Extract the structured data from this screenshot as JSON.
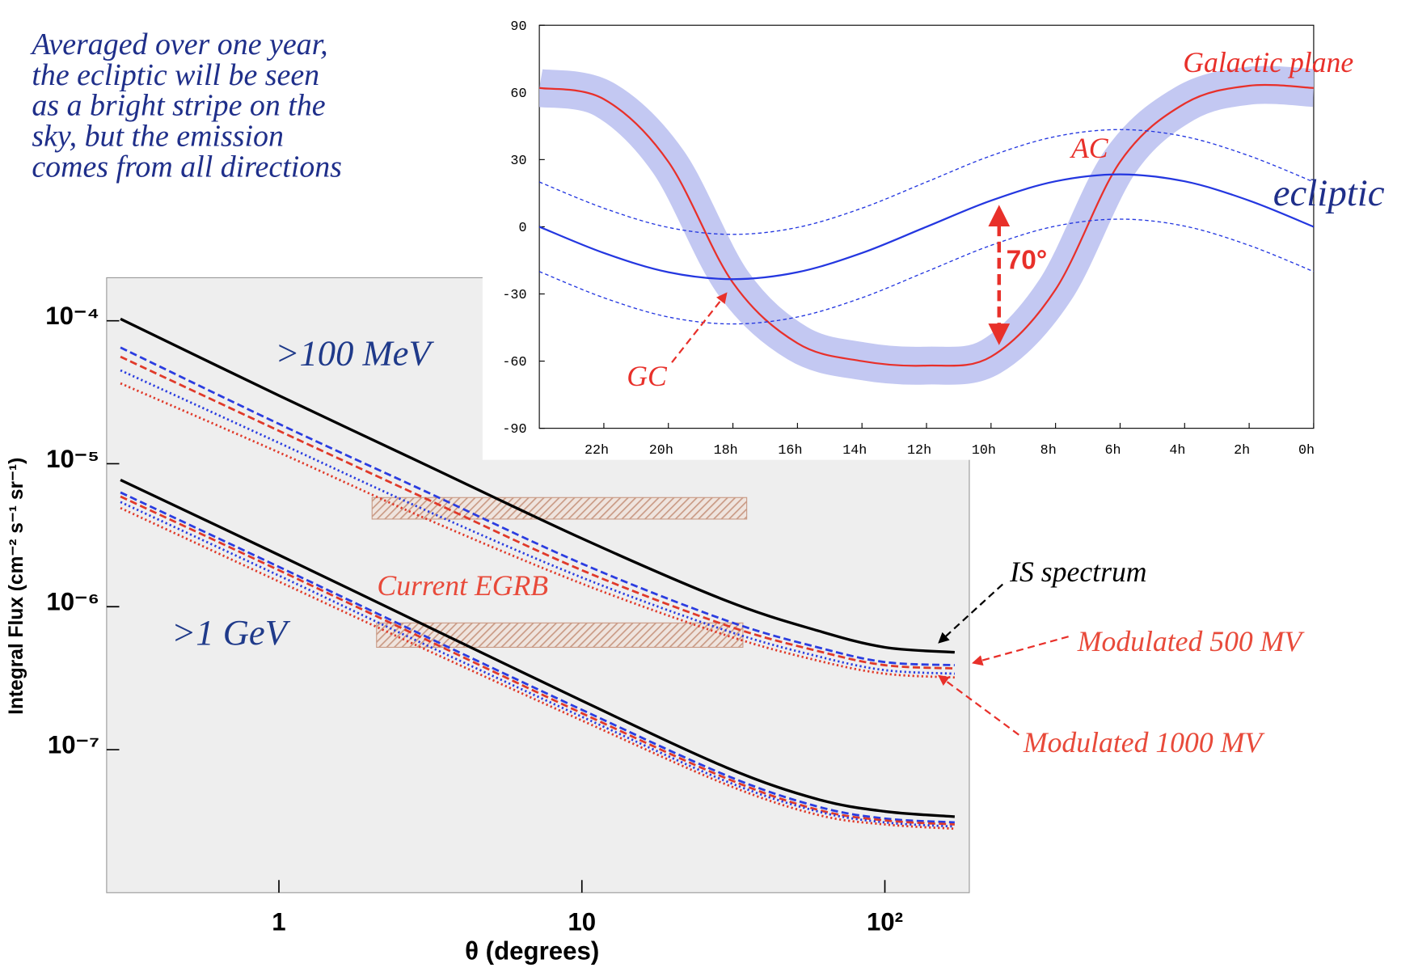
{
  "caption": [
    "Averaged over one year,",
    "the ecliptic will be seen",
    "as a bright stripe on the",
    "sky, but the emission",
    "comes from all directions"
  ],
  "chart_data": [
    {
      "type": "line",
      "x_label": "θ (degrees)",
      "y_label": "Integral Flux (cm⁻² s⁻¹ sr⁻¹)",
      "xscale": "log",
      "yscale": "log",
      "xlim": [
        0.27,
        190
      ],
      "ylim": [
        1e-08,
        0.0002
      ],
      "xticks": [
        1,
        10,
        {
          "value": 100,
          "label": "10²"
        }
      ],
      "yticks": [
        {
          "value": 0.0001,
          "label": "10⁻⁴"
        },
        {
          "value": 1e-05,
          "label": "10⁻⁵"
        },
        {
          "value": 1e-06,
          "label": "10⁻⁶"
        },
        {
          "value": 1e-07,
          "label": "10⁻⁷"
        }
      ],
      "x": [
        0.3,
        1,
        3,
        10,
        30,
        60,
        100,
        170
      ],
      "series": [
        {
          "color": "#000000",
          "style": "solid",
          "values": [
            0.000103,
            3e-05,
            1e-05,
            3e-06,
            1.1e-06,
            6.8e-07,
            5.2e-07,
            4.8e-07
          ]
        },
        {
          "color": "#2b3de0",
          "style": "dashed",
          "values": [
            6.5e-05,
            1.9e-05,
            6.5e-06,
            2e-06,
            8e-07,
            5.2e-07,
            4.1e-07,
            3.9e-07
          ]
        },
        {
          "color": "#e03a2a",
          "style": "dashed",
          "values": [
            5.6e-05,
            1.7e-05,
            5.8e-06,
            1.8e-06,
            7.4e-07,
            4.9e-07,
            3.9e-07,
            3.7e-07
          ]
        },
        {
          "color": "#2b3de0",
          "style": "dotted",
          "values": [
            4.5e-05,
            1.4e-05,
            4.8e-06,
            1.6e-06,
            6.8e-07,
            4.5e-07,
            3.6e-07,
            3.4e-07
          ]
        },
        {
          "color": "#e03a2a",
          "style": "dotted",
          "values": [
            3.65e-05,
            1.2e-05,
            4.2e-06,
            1.45e-06,
            6.3e-07,
            4.2e-07,
            3.4e-07,
            3.2e-07
          ]
        },
        {
          "color": "#000000",
          "style": "solid",
          "values": [
            7.7e-06,
            2.3e-06,
            7.5e-07,
            2.2e-07,
            7.5e-08,
            4.5e-08,
            3.7e-08,
            3.4e-08
          ]
        },
        {
          "color": "#2b3de0",
          "style": "dashed",
          "values": [
            6.3e-06,
            1.9e-06,
            6.3e-07,
            1.9e-07,
            6.6e-08,
            4e-08,
            3.3e-08,
            3.1e-08
          ]
        },
        {
          "color": "#e03a2a",
          "style": "dashed",
          "values": [
            5.9e-06,
            1.8e-06,
            6e-07,
            1.8e-07,
            6.3e-08,
            3.8e-08,
            3.2e-08,
            3e-08
          ]
        },
        {
          "color": "#2b3de0",
          "style": "dotted",
          "values": [
            5.4e-06,
            1.65e-06,
            5.5e-07,
            1.7e-07,
            6e-08,
            3.7e-08,
            3.1e-08,
            2.9e-08
          ]
        },
        {
          "color": "#e03a2a",
          "style": "dotted",
          "values": [
            4.9e-06,
            1.5e-06,
            5.1e-07,
            1.6e-07,
            5.7e-08,
            3.5e-08,
            3e-08,
            2.8e-08
          ]
        }
      ],
      "bands": [
        {
          "xlim": [
            2.03,
            35
          ],
          "ylim": [
            4.1e-06,
            5.8e-06
          ]
        },
        {
          "xlim": [
            2.1,
            34
          ],
          "ylim": [
            5.2e-07,
            7.7e-07
          ]
        }
      ],
      "band_color": "#c99a85",
      "annotations": [
        {
          "text": ">100 MeV",
          "color": "#1f3a8a"
        },
        {
          "text": ">1 GeV",
          "color": "#1f3a8a"
        },
        {
          "text": "Current EGRB",
          "color": "#e84a3a"
        },
        {
          "text": "IS spectrum",
          "color": "#000000"
        },
        {
          "text": "Modulated 500 MV",
          "color": "#e84a3a"
        },
        {
          "text": "Modulated 1000 MV",
          "color": "#e84a3a"
        }
      ]
    },
    {
      "type": "skymap",
      "xlim": [
        24,
        0
      ],
      "ylim": [
        -90,
        90
      ],
      "xticks": [
        {
          "value": 22,
          "label": "22h"
        },
        {
          "value": 20,
          "label": "20h"
        },
        {
          "value": 18,
          "label": "18h"
        },
        {
          "value": 16,
          "label": "16h"
        },
        {
          "value": 14,
          "label": "14h"
        },
        {
          "value": 12,
          "label": "12h"
        },
        {
          "value": 10,
          "label": "10h"
        },
        {
          "value": 8,
          "label": "8h"
        },
        {
          "value": 6,
          "label": "6h"
        },
        {
          "value": 4,
          "label": "4h"
        },
        {
          "value": 2,
          "label": "2h"
        },
        {
          "value": 0,
          "label": "0h"
        }
      ],
      "yticks": [
        -90,
        -60,
        -30,
        0,
        30,
        60,
        90
      ],
      "x": [
        24,
        22,
        20,
        18,
        16,
        14,
        12,
        10,
        8,
        6,
        4,
        2,
        0
      ],
      "band_color": "#c3c8f2",
      "series": [
        {
          "name": "Galactic plane",
          "color": "#e8302a",
          "style": "solid",
          "values": [
            62,
            57,
            29,
            -25,
            -52,
            -60,
            -62,
            -58,
            -28,
            29,
            55,
            63,
            62
          ]
        },
        {
          "name": "ecliptic",
          "color": "#2437e0",
          "style": "solid",
          "values": [
            0,
            -11.7,
            -20.3,
            -23.4,
            -20.3,
            -11.7,
            0,
            11.7,
            20.3,
            23.4,
            20.3,
            11.7,
            0
          ]
        },
        {
          "color": "#2437e0",
          "style": "dashed",
          "values": [
            20,
            8.3,
            -0.3,
            -3.4,
            -0.3,
            8.3,
            20,
            31.7,
            40.3,
            43.4,
            40.3,
            31.7,
            20
          ]
        },
        {
          "color": "#2437e0",
          "style": "dashed",
          "values": [
            -20,
            -31.7,
            -40.3,
            -43.4,
            -40.3,
            -31.7,
            -20,
            -8.3,
            0.3,
            3.4,
            0.3,
            -8.3,
            -20
          ]
        }
      ],
      "annotations": [
        {
          "text": "AC",
          "color": "#e8302a"
        },
        {
          "text": "GC",
          "color": "#e8302a"
        },
        {
          "text": "70°",
          "color": "#e8302a"
        }
      ]
    }
  ]
}
